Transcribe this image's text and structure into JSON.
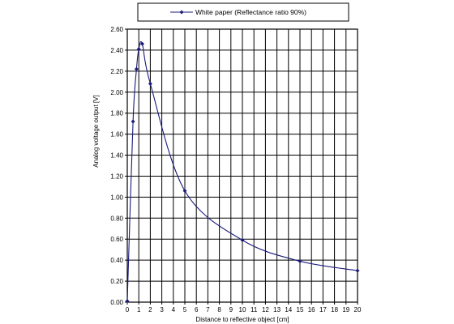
{
  "chart_data": {
    "type": "line",
    "xlabel": "Distance to reflective object [cm]",
    "ylabel": "Analog voltage output [V]",
    "xlim": [
      0,
      20
    ],
    "ylim": [
      0,
      2.6
    ],
    "x_ticks": [
      0,
      1,
      2,
      3,
      4,
      5,
      6,
      7,
      8,
      9,
      10,
      11,
      12,
      13,
      14,
      15,
      16,
      17,
      18,
      19,
      20
    ],
    "x_tick_labels": [
      "0",
      "1",
      "2",
      "3",
      "4",
      "5",
      "6",
      "7",
      "8",
      "9",
      "10",
      "11",
      "12",
      "13",
      "14",
      "15",
      "16",
      "17",
      "18",
      "19",
      "20"
    ],
    "y_ticks": [
      0,
      0.2,
      0.4,
      0.6,
      0.8,
      1.0,
      1.2,
      1.4,
      1.6,
      1.8,
      2.0,
      2.2,
      2.4,
      2.6
    ],
    "y_tick_labels": [
      "0.00",
      "0.20",
      "0.40",
      "0.60",
      "0.80",
      "1.00",
      "1.20",
      "1.40",
      "1.60",
      "1.80",
      "2.00",
      "2.20",
      "2.40",
      "2.60"
    ],
    "grid": true,
    "legend_position": "top",
    "series": [
      {
        "name": "White paper (Reflectance ratio 90%)",
        "color": "#1a1a7a",
        "marker": "diamond",
        "x": [
          0,
          0.5,
          0.8,
          1.0,
          1.3,
          2.0,
          5.0,
          10.0,
          15.0,
          20.0
        ],
        "y": [
          0.01,
          1.72,
          2.22,
          2.41,
          2.46,
          2.08,
          1.06,
          0.59,
          0.39,
          0.3
        ]
      }
    ]
  }
}
